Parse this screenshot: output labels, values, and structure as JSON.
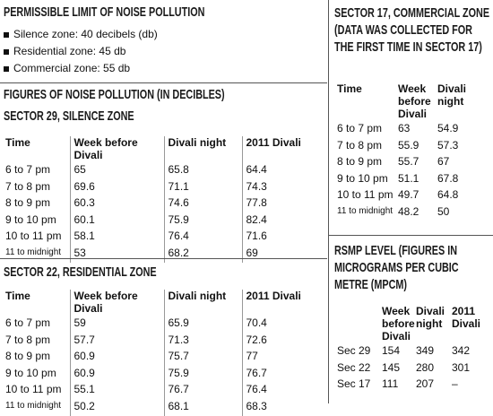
{
  "permissible": {
    "title": "PERMISSIBLE LIMIT OF NOISE POLLUTION",
    "items": [
      "Silence zone: 40 decibels (db)",
      "Residential zone: 45 db",
      "Commercial zone: 55 db"
    ]
  },
  "figures_title": "FIGURES OF NOISE POLLUTION (IN DECIBLES)",
  "sector29": {
    "title": "SECTOR 29, SILENCE ZONE",
    "columns": [
      "Time",
      "Week before Divali",
      "Divali night",
      "2011 Divali"
    ],
    "rows": [
      [
        "6 to 7 pm",
        "65",
        "65.8",
        "64.4"
      ],
      [
        "7 to 8 pm",
        "69.6",
        "71.1",
        "74.3"
      ],
      [
        "8 to 9 pm",
        "60.3",
        "74.6",
        "77.8"
      ],
      [
        "9 to 10 pm",
        "60.1",
        "75.9",
        "82.4"
      ],
      [
        "10 to 11 pm",
        "58.1",
        "76.4",
        "71.6"
      ],
      [
        "11 to midnight",
        "53",
        "68.2",
        "69"
      ]
    ]
  },
  "sector22": {
    "title": "SECTOR 22, RESIDENTIAL ZONE",
    "columns": [
      "Time",
      "Week before Divali",
      "Divali night",
      "2011 Divali"
    ],
    "rows": [
      [
        "6 to 7 pm",
        "59",
        "65.9",
        "70.4"
      ],
      [
        "7 to 8 pm",
        "57.7",
        "71.3",
        "72.6"
      ],
      [
        "8 to 9 pm",
        "60.9",
        "75.7",
        "77"
      ],
      [
        "9 to 10 pm",
        "60.9",
        "75.9",
        "76.7"
      ],
      [
        "10 to 11 pm",
        "55.1",
        "76.7",
        "76.4"
      ],
      [
        "11 to midnight",
        "50.2",
        "68.1",
        "68.3"
      ]
    ]
  },
  "sector17": {
    "title": "SECTOR 17, COMMERCIAL ZONE (DATA WAS COLLECTED FOR THE FIRST TIME IN SECTOR 17)",
    "columns": [
      "Time",
      "Week before Divali",
      "Divali night"
    ],
    "rows": [
      [
        "6 to 7 pm",
        "63",
        "54.9"
      ],
      [
        "7 to 8 pm",
        "55.9",
        "57.3"
      ],
      [
        "8 to 9 pm",
        "55.7",
        "67"
      ],
      [
        "9 to 10 pm",
        "51.1",
        "67.8"
      ],
      [
        "10 to 11 pm",
        "49.7",
        "64.8"
      ],
      [
        "11 to midnight",
        "48.2",
        "50"
      ]
    ]
  },
  "rsmp": {
    "title": "RSMP LEVEL (FIGURES IN MICROGRAMS PER CUBIC METRE (MPCM)",
    "columns": [
      "Week before Divali",
      "Divali night",
      "2011 Divali"
    ],
    "rows": [
      [
        "Sec 29",
        "154",
        "349",
        "342"
      ],
      [
        "Sec 22",
        "145",
        "280",
        "301"
      ],
      [
        "Sec 17",
        "111",
        "207",
        "–"
      ]
    ]
  }
}
